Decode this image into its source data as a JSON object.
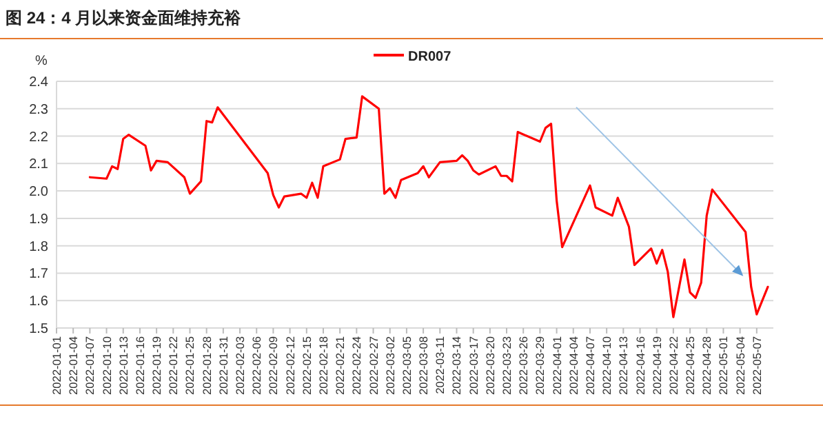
{
  "chart_data": {
    "type": "line",
    "title": "图 24：4 月以来资金面维持充裕",
    "ylabel": "%",
    "x": [
      "2022-01-07",
      "2022-01-10",
      "2022-01-11",
      "2022-01-12",
      "2022-01-13",
      "2022-01-14",
      "2022-01-17",
      "2022-01-18",
      "2022-01-19",
      "2022-01-21",
      "2022-01-24",
      "2022-01-25",
      "2022-01-27",
      "2022-01-28",
      "2022-01-29",
      "2022-01-30",
      "2022-02-08",
      "2022-02-09",
      "2022-02-10",
      "2022-02-11",
      "2022-02-14",
      "2022-02-15",
      "2022-02-16",
      "2022-02-17",
      "2022-02-18",
      "2022-02-21",
      "2022-02-22",
      "2022-02-24",
      "2022-02-25",
      "2022-02-28",
      "2022-03-01",
      "2022-03-02",
      "2022-03-03",
      "2022-03-04",
      "2022-03-07",
      "2022-03-08",
      "2022-03-09",
      "2022-03-11",
      "2022-03-14",
      "2022-03-15",
      "2022-03-16",
      "2022-03-17",
      "2022-03-18",
      "2022-03-21",
      "2022-03-22",
      "2022-03-23",
      "2022-03-24",
      "2022-03-25",
      "2022-03-29",
      "2022-03-30",
      "2022-03-31",
      "2022-04-01",
      "2022-04-02",
      "2022-04-07",
      "2022-04-08",
      "2022-04-11",
      "2022-04-12",
      "2022-04-14",
      "2022-04-15",
      "2022-04-18",
      "2022-04-19",
      "2022-04-20",
      "2022-04-21",
      "2022-04-22",
      "2022-04-24",
      "2022-04-25",
      "2022-04-26",
      "2022-04-27",
      "2022-04-28",
      "2022-04-29",
      "2022-05-05",
      "2022-05-06",
      "2022-05-07",
      "2022-05-09"
    ],
    "series": [
      {
        "name": "DR007",
        "color": "#ff0000",
        "values": [
          2.05,
          2.045,
          2.09,
          2.08,
          2.19,
          2.205,
          2.165,
          2.075,
          2.11,
          2.105,
          2.05,
          1.99,
          2.035,
          2.255,
          2.25,
          2.305,
          2.065,
          1.985,
          1.94,
          1.98,
          1.99,
          1.975,
          2.03,
          1.975,
          2.09,
          2.115,
          2.19,
          2.195,
          2.345,
          2.3,
          1.99,
          2.01,
          1.975,
          2.04,
          2.065,
          2.09,
          2.05,
          2.105,
          2.11,
          2.13,
          2.11,
          2.075,
          2.06,
          2.09,
          2.055,
          2.055,
          2.035,
          2.215,
          2.18,
          2.23,
          2.245,
          1.965,
          1.795,
          2.02,
          1.94,
          1.91,
          1.975,
          1.87,
          1.73,
          1.79,
          1.735,
          1.785,
          1.705,
          1.54,
          1.75,
          1.63,
          1.61,
          1.665,
          1.91,
          2.005,
          1.85,
          1.65,
          1.55,
          1.65
        ]
      }
    ],
    "xlim": [
      "2022-01-01",
      "2022-05-10"
    ],
    "xticks": [
      "2022-01-01",
      "2022-01-04",
      "2022-01-07",
      "2022-01-10",
      "2022-01-13",
      "2022-01-16",
      "2022-01-19",
      "2022-01-22",
      "2022-01-25",
      "2022-01-28",
      "2022-01-31",
      "2022-02-03",
      "2022-02-06",
      "2022-02-09",
      "2022-02-12",
      "2022-02-15",
      "2022-02-18",
      "2022-02-21",
      "2022-02-24",
      "2022-02-27",
      "2022-03-02",
      "2022-03-05",
      "2022-03-08",
      "2022-03-11",
      "2022-03-14",
      "2022-03-17",
      "2022-03-20",
      "2022-03-23",
      "2022-03-26",
      "2022-03-29",
      "2022-04-01",
      "2022-04-04",
      "2022-04-07",
      "2022-04-10",
      "2022-04-13",
      "2022-04-16",
      "2022-04-19",
      "2022-04-22",
      "2022-04-25",
      "2022-04-28",
      "2022-05-01",
      "2022-05-04",
      "2022-05-07"
    ],
    "ylim": [
      1.5,
      2.4
    ],
    "yticks": [
      {
        "value": 1.5,
        "label": "1.5"
      },
      {
        "value": 1.6,
        "label": "1.6"
      },
      {
        "value": 1.7,
        "label": "1.7"
      },
      {
        "value": 1.8,
        "label": "1.8"
      },
      {
        "value": 1.9,
        "label": "1.9"
      },
      {
        "value": 2.0,
        "label": "2.0"
      },
      {
        "value": 2.1,
        "label": "2.1"
      },
      {
        "value": 2.2,
        "label": "2.2"
      },
      {
        "value": 2.3,
        "label": "2.3"
      },
      {
        "value": 2.4,
        "label": "2.4"
      }
    ],
    "grid": "y",
    "legend": "top",
    "marker": "none",
    "line_style": "solid"
  }
}
